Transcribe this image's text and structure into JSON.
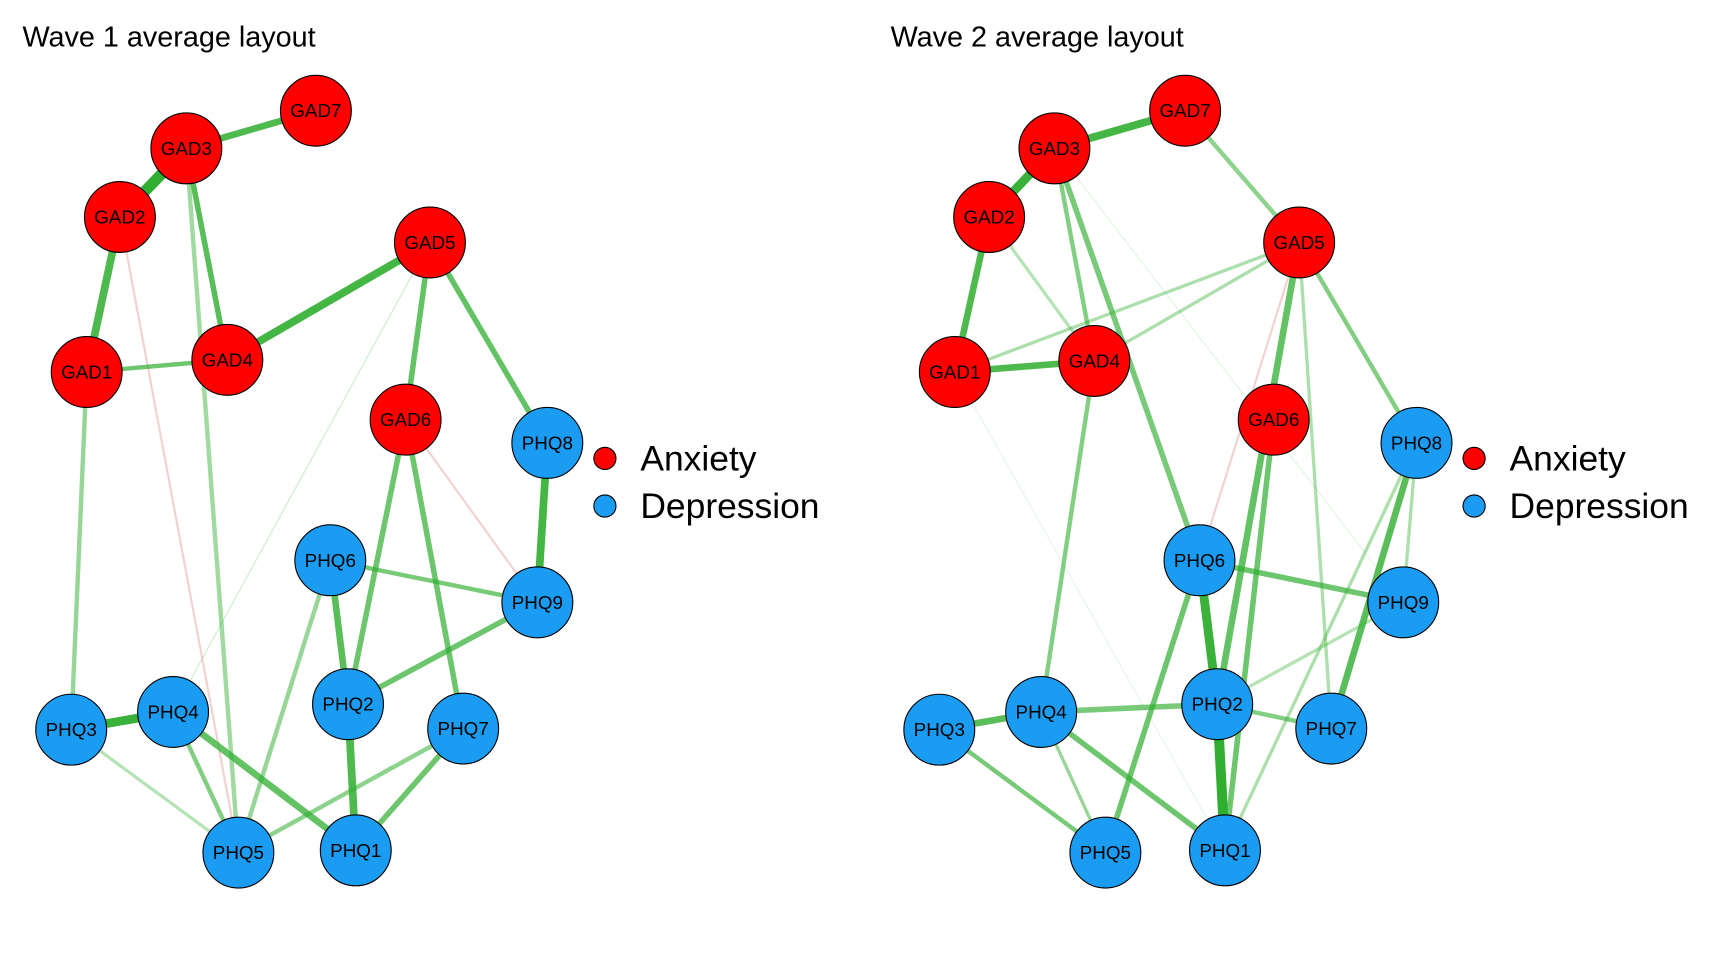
{
  "panels": [
    {
      "title": "Wave 1 average layout",
      "nodes": [
        {
          "label": "GAD1",
          "group": 0
        },
        {
          "label": "GAD2",
          "group": 0
        },
        {
          "label": "GAD3",
          "group": 0
        },
        {
          "label": "GAD4",
          "group": 0
        },
        {
          "label": "GAD5",
          "group": 0
        },
        {
          "label": "GAD6",
          "group": 0
        },
        {
          "label": "GAD7",
          "group": 0
        },
        {
          "label": "PHQ1",
          "group": 1
        },
        {
          "label": "PHQ2",
          "group": 1
        },
        {
          "label": "PHQ3",
          "group": 1
        },
        {
          "label": "PHQ4",
          "group": 1
        },
        {
          "label": "PHQ5",
          "group": 1
        },
        {
          "label": "PHQ6",
          "group": 1
        },
        {
          "label": "PHQ7",
          "group": 1
        },
        {
          "label": "PHQ8",
          "group": 1
        },
        {
          "label": "PHQ9",
          "group": 1
        }
      ]
    },
    {
      "title": "Wave 2 average layout",
      "nodes": [
        {
          "label": "GAD1",
          "group": 0
        },
        {
          "label": "GAD2",
          "group": 0
        },
        {
          "label": "GAD3",
          "group": 0
        },
        {
          "label": "GAD4",
          "group": 0
        },
        {
          "label": "GAD5",
          "group": 0
        },
        {
          "label": "GAD6",
          "group": 0
        },
        {
          "label": "GAD7",
          "group": 0
        },
        {
          "label": "PHQ1",
          "group": 1
        },
        {
          "label": "PHQ2",
          "group": 1
        },
        {
          "label": "PHQ3",
          "group": 1
        },
        {
          "label": "PHQ4",
          "group": 1
        },
        {
          "label": "PHQ5",
          "group": 1
        },
        {
          "label": "PHQ6",
          "group": 1
        },
        {
          "label": "PHQ7",
          "group": 1
        },
        {
          "label": "PHQ8",
          "group": 1
        },
        {
          "label": "PHQ9",
          "group": 1
        }
      ]
    }
  ],
  "legend": [
    {
      "label": "Anxiety",
      "color": "#ff0000"
    },
    {
      "label": "Depression",
      "color": "#1a9cf2"
    }
  ]
}
